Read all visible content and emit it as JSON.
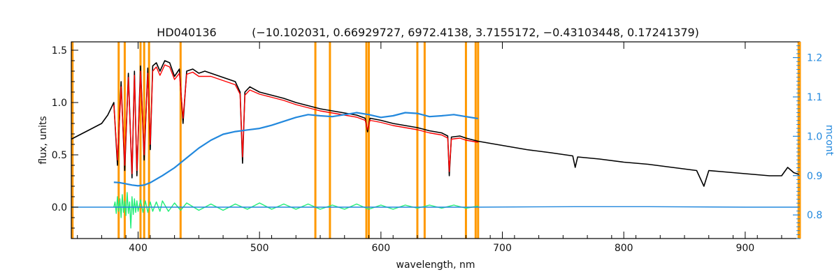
{
  "chart_data": {
    "type": "line",
    "title_object": "HD040136",
    "title_params": "(−10.102031, 0.66929727, 6972.4138, 3.7155172, −0.43103448, 0.17241379)",
    "xlabel": "wavelength, nm",
    "ylabel": "flux, units",
    "y2label": "mcont",
    "xlim": [
      345,
      945
    ],
    "ylim": [
      -0.3,
      1.58
    ],
    "y2lim": [
      0.74,
      1.24
    ],
    "x_ticks": [
      400,
      500,
      600,
      700,
      800,
      900
    ],
    "x_tick_labels": [
      "400",
      "500",
      "600",
      "700",
      "800",
      "900"
    ],
    "y_ticks": [
      0.0,
      0.5,
      1.0,
      1.5
    ],
    "y_tick_labels": [
      "0.0",
      "0.5",
      "1.0",
      "1.5"
    ],
    "y2_ticks": [
      0.8,
      0.9,
      1.0,
      1.1,
      1.2
    ],
    "y2_tick_labels": [
      "0.8",
      "0.9",
      "1.0",
      "1.1",
      "1.2"
    ],
    "vertical_lines_x": [
      346,
      384,
      389,
      402,
      405,
      409,
      435,
      546,
      558,
      588,
      590,
      630,
      636,
      670,
      678,
      680,
      944
    ],
    "series": [
      {
        "role": "observed",
        "color": "#000000",
        "axis": "left",
        "x": [
          345,
          350,
          360,
          370,
          375,
          380,
          383,
          386,
          389,
          392,
          395,
          397,
          399,
          402,
          405,
          408,
          410,
          412,
          415,
          418,
          422,
          426,
          430,
          434,
          437,
          440,
          445,
          450,
          455,
          460,
          470,
          480,
          484,
          486,
          488,
          492,
          500,
          510,
          520,
          530,
          540,
          550,
          560,
          570,
          580,
          587,
          589,
          591,
          600,
          610,
          620,
          630,
          640,
          650,
          655,
          656.3,
          658,
          665,
          670,
          680,
          690,
          700,
          720,
          740,
          758,
          760,
          762,
          780,
          800,
          820,
          840,
          860,
          866,
          870,
          880,
          900,
          910,
          920,
          930,
          935,
          940,
          945
        ],
        "y": [
          0.65,
          0.68,
          0.74,
          0.8,
          0.88,
          1.0,
          0.4,
          1.2,
          0.35,
          1.28,
          0.28,
          1.3,
          0.3,
          1.35,
          0.45,
          1.33,
          0.55,
          1.35,
          1.38,
          1.3,
          1.4,
          1.38,
          1.25,
          1.32,
          0.8,
          1.3,
          1.32,
          1.28,
          1.3,
          1.28,
          1.24,
          1.2,
          1.1,
          0.42,
          1.1,
          1.15,
          1.1,
          1.07,
          1.04,
          1.0,
          0.97,
          0.94,
          0.92,
          0.9,
          0.88,
          0.85,
          0.72,
          0.85,
          0.83,
          0.8,
          0.78,
          0.76,
          0.73,
          0.71,
          0.68,
          0.3,
          0.67,
          0.68,
          0.66,
          0.63,
          0.61,
          0.59,
          0.55,
          0.52,
          0.49,
          0.38,
          0.48,
          0.46,
          0.43,
          0.41,
          0.38,
          0.35,
          0.2,
          0.35,
          0.34,
          0.32,
          0.31,
          0.3,
          0.3,
          0.38,
          0.33,
          0.31
        ]
      },
      {
        "role": "model",
        "color": "#ff0000",
        "axis": "left",
        "x": [
          380,
          383,
          386,
          389,
          392,
          395,
          397,
          399,
          402,
          405,
          408,
          410,
          412,
          415,
          418,
          422,
          426,
          430,
          434,
          437,
          440,
          445,
          450,
          460,
          470,
          480,
          484,
          486,
          488,
          492,
          500,
          510,
          520,
          530,
          540,
          550,
          560,
          570,
          580,
          587,
          589,
          591,
          600,
          610,
          620,
          630,
          640,
          650,
          655,
          656.3,
          658,
          665,
          670,
          680
        ],
        "y": [
          0.98,
          0.45,
          1.15,
          0.4,
          1.24,
          0.32,
          1.26,
          0.35,
          1.3,
          0.5,
          1.28,
          0.6,
          1.3,
          1.34,
          1.26,
          1.36,
          1.34,
          1.22,
          1.28,
          0.85,
          1.27,
          1.29,
          1.25,
          1.25,
          1.21,
          1.17,
          1.08,
          0.48,
          1.07,
          1.12,
          1.08,
          1.05,
          1.02,
          0.98,
          0.95,
          0.92,
          0.9,
          0.88,
          0.86,
          0.83,
          0.74,
          0.83,
          0.81,
          0.78,
          0.76,
          0.74,
          0.71,
          0.69,
          0.66,
          0.34,
          0.65,
          0.66,
          0.64,
          0.62
        ]
      },
      {
        "role": "residual",
        "color": "#22ee77",
        "axis": "left",
        "x": [
          380,
          381,
          382,
          383,
          384,
          385,
          386,
          387,
          388,
          389,
          390,
          391,
          392,
          393,
          394,
          395,
          396,
          397,
          398,
          399,
          400,
          402,
          404,
          406,
          408,
          410,
          412,
          415,
          418,
          420,
          425,
          430,
          435,
          440,
          450,
          460,
          470,
          480,
          490,
          500,
          510,
          520,
          530,
          540,
          550,
          560,
          570,
          580,
          590,
          600,
          610,
          620,
          630,
          640,
          650,
          660,
          670,
          680
        ],
        "y": [
          0.0,
          0.05,
          -0.06,
          0.1,
          -0.04,
          0.08,
          -0.1,
          0.12,
          -0.05,
          0.06,
          -0.08,
          0.14,
          -0.06,
          0.05,
          -0.2,
          0.1,
          -0.07,
          0.08,
          -0.05,
          0.06,
          -0.04,
          0.07,
          -0.05,
          0.06,
          -0.05,
          0.05,
          -0.04,
          0.05,
          -0.04,
          0.06,
          -0.04,
          0.04,
          -0.03,
          0.04,
          -0.03,
          0.03,
          -0.03,
          0.03,
          -0.02,
          0.04,
          -0.02,
          0.03,
          -0.02,
          0.03,
          -0.02,
          0.02,
          -0.02,
          0.03,
          -0.02,
          0.02,
          -0.02,
          0.02,
          -0.01,
          0.02,
          -0.01,
          0.02,
          -0.01,
          0.01
        ]
      },
      {
        "role": "residual-flat",
        "color": "#2288dd",
        "axis": "left",
        "x": [
          345,
          380,
          680,
          760,
          820,
          900,
          945
        ],
        "y": [
          0.0,
          0.0,
          0.0,
          0.005,
          0.005,
          0.0,
          0.0
        ]
      },
      {
        "role": "mcont",
        "color": "#2288dd",
        "axis": "right",
        "x": [
          380,
          385,
          390,
          395,
          400,
          405,
          410,
          420,
          430,
          440,
          450,
          460,
          470,
          480,
          490,
          500,
          510,
          520,
          530,
          540,
          550,
          560,
          570,
          580,
          590,
          600,
          610,
          620,
          630,
          640,
          650,
          660,
          670,
          680
        ],
        "y": [
          0.883,
          0.882,
          0.879,
          0.876,
          0.874,
          0.876,
          0.882,
          0.9,
          0.92,
          0.945,
          0.97,
          0.99,
          1.005,
          1.012,
          1.016,
          1.02,
          1.028,
          1.038,
          1.048,
          1.055,
          1.052,
          1.05,
          1.055,
          1.06,
          1.055,
          1.048,
          1.052,
          1.06,
          1.058,
          1.05,
          1.052,
          1.055,
          1.05,
          1.045
        ]
      }
    ]
  }
}
